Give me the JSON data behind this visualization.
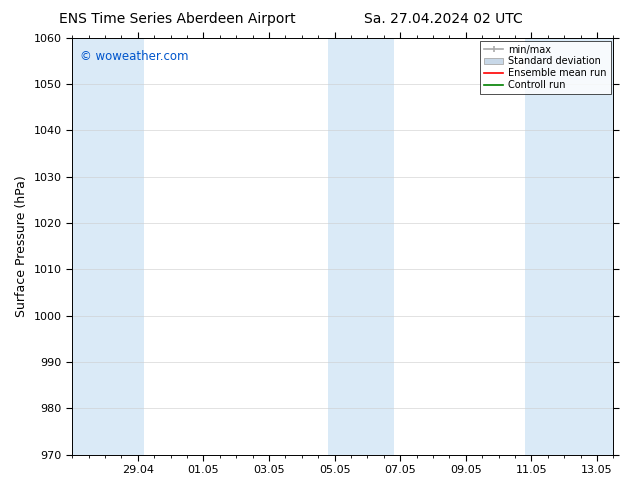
{
  "title_left": "ENS Time Series Aberdeen Airport",
  "title_right": "Sa. 27.04.2024 02 UTC",
  "ylabel": "Surface Pressure (hPa)",
  "watermark": "© woweather.com",
  "watermark_color": "#0055cc",
  "bg_color": "#ffffff",
  "plot_bg_color": "#ffffff",
  "ylim": [
    970,
    1060
  ],
  "yticks": [
    970,
    980,
    990,
    1000,
    1010,
    1020,
    1030,
    1040,
    1050,
    1060
  ],
  "xlim_start": 0.0,
  "xlim_end": 16.5,
  "x_tick_positions": [
    2,
    4,
    6,
    8,
    10,
    12,
    14,
    16
  ],
  "x_tick_labels": [
    "29.04",
    "01.05",
    "03.05",
    "05.05",
    "07.05",
    "09.05",
    "11.05",
    "13.05"
  ],
  "shade_bands": [
    {
      "x_start": 0.0,
      "x_end": 2.2
    },
    {
      "x_start": 7.8,
      "x_end": 9.8
    },
    {
      "x_start": 13.8,
      "x_end": 16.5
    }
  ],
  "shade_color": "#daeaf7",
  "grid_color": "#cccccc",
  "legend_labels": [
    "min/max",
    "Standard deviation",
    "Ensemble mean run",
    "Controll run"
  ],
  "minmax_color": "#aaaaaa",
  "std_face_color": "#c8d8e8",
  "std_edge_color": "#aaaaaa",
  "ens_color": "#ff0000",
  "ctrl_color": "#008000",
  "title_fontsize": 10,
  "tick_fontsize": 8,
  "ylabel_fontsize": 9,
  "watermark_fontsize": 8.5,
  "legend_fontsize": 7
}
